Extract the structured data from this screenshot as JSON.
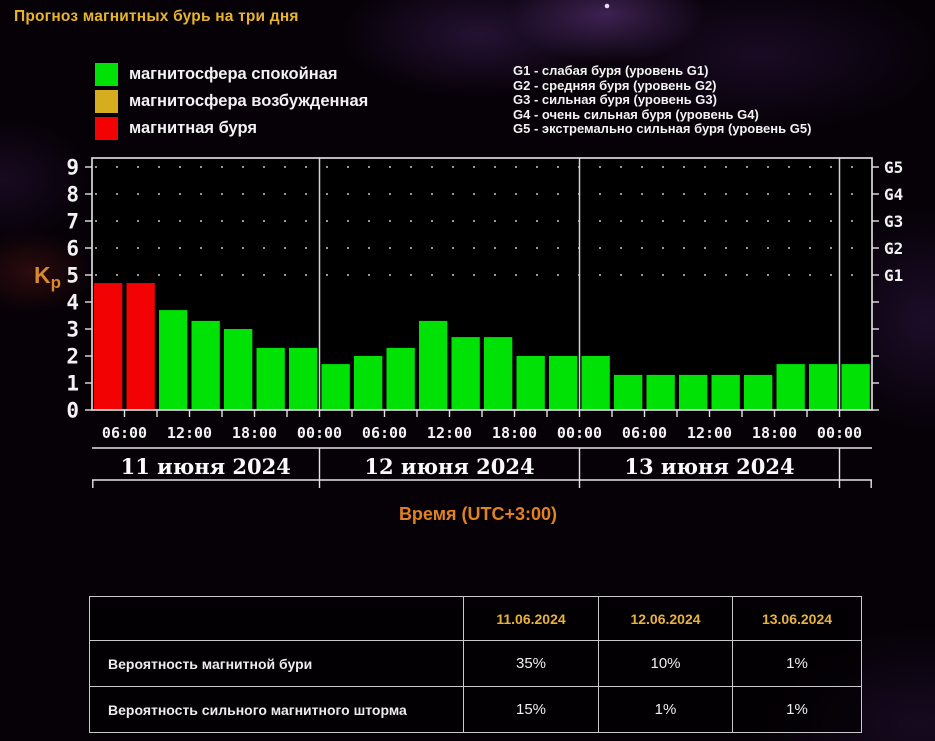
{
  "page": {
    "title": "Прогноз магнитных бурь на три дня"
  },
  "legend": {
    "items": [
      {
        "label": "магнитосфера спокойная",
        "state": "quiet",
        "color": "#00e206"
      },
      {
        "label": "магнитосфера возбужденная",
        "state": "excited",
        "color": "#d6ad1e"
      },
      {
        "label": "магнитная буря",
        "state": "storm",
        "color": "#f20202"
      }
    ]
  },
  "storm_levels": [
    "G1 - слабая буря (уровень G1)",
    "G2 - средняя буря (уровень G2)",
    "G3 - сильная буря (уровень G3)",
    "G4 - очень сильная буря (уровень G4)",
    "G5 - экстремально сильная буря (уровень G5)"
  ],
  "chart_data": {
    "type": "bar",
    "ylabel": "Kp",
    "xlabel": "Время (UTC+3:00)",
    "ylim": [
      0,
      9
    ],
    "yticks": [
      0,
      1,
      2,
      3,
      4,
      5,
      6,
      7,
      8,
      9
    ],
    "bar_duration_hours": 3,
    "start_hour": 3,
    "end_hour": 75,
    "colors": {
      "quiet": "#00e206",
      "excited": "#d6ad1e",
      "storm": "#f20202"
    },
    "grid": "dotted rows at Kp 5-9",
    "right_axis": [
      {
        "kp": 5,
        "label": "G1"
      },
      {
        "kp": 6,
        "label": "G2"
      },
      {
        "kp": 7,
        "label": "G3"
      },
      {
        "kp": 8,
        "label": "G4"
      },
      {
        "kp": 9,
        "label": "G5"
      }
    ],
    "days": [
      {
        "label": "11 июня 2024",
        "start_hour": 3,
        "end_hour": 24
      },
      {
        "label": "12 июня 2024",
        "start_hour": 24,
        "end_hour": 48
      },
      {
        "label": "13 июня 2024",
        "start_hour": 48,
        "end_hour": 72
      }
    ],
    "time_ticks": [
      {
        "hour": 6,
        "label": "06:00"
      },
      {
        "hour": 12,
        "label": "12:00"
      },
      {
        "hour": 18,
        "label": "18:00"
      },
      {
        "hour": 24,
        "label": "00:00"
      },
      {
        "hour": 30,
        "label": "06:00"
      },
      {
        "hour": 36,
        "label": "12:00"
      },
      {
        "hour": 42,
        "label": "18:00"
      },
      {
        "hour": 48,
        "label": "00:00"
      },
      {
        "hour": 54,
        "label": "06:00"
      },
      {
        "hour": 60,
        "label": "12:00"
      },
      {
        "hour": 66,
        "label": "18:00"
      },
      {
        "hour": 72,
        "label": "00:00"
      }
    ],
    "bars": [
      {
        "kp": 4.7,
        "state": "storm"
      },
      {
        "kp": 4.7,
        "state": "storm"
      },
      {
        "kp": 3.7,
        "state": "quiet"
      },
      {
        "kp": 3.3,
        "state": "quiet"
      },
      {
        "kp": 3.0,
        "state": "quiet"
      },
      {
        "kp": 2.3,
        "state": "quiet"
      },
      {
        "kp": 2.3,
        "state": "quiet"
      },
      {
        "kp": 1.7,
        "state": "quiet"
      },
      {
        "kp": 2.0,
        "state": "quiet"
      },
      {
        "kp": 2.3,
        "state": "quiet"
      },
      {
        "kp": 3.3,
        "state": "quiet"
      },
      {
        "kp": 2.7,
        "state": "quiet"
      },
      {
        "kp": 2.7,
        "state": "quiet"
      },
      {
        "kp": 2.0,
        "state": "quiet"
      },
      {
        "kp": 2.0,
        "state": "quiet"
      },
      {
        "kp": 2.0,
        "state": "quiet"
      },
      {
        "kp": 1.3,
        "state": "quiet"
      },
      {
        "kp": 1.3,
        "state": "quiet"
      },
      {
        "kp": 1.3,
        "state": "quiet"
      },
      {
        "kp": 1.3,
        "state": "quiet"
      },
      {
        "kp": 1.3,
        "state": "quiet"
      },
      {
        "kp": 1.7,
        "state": "quiet"
      },
      {
        "kp": 1.7,
        "state": "quiet"
      },
      {
        "kp": 1.7,
        "state": "quiet"
      }
    ]
  },
  "table": {
    "header": [
      "",
      "11.06.2024",
      "12.06.2024",
      "13.06.2024"
    ],
    "rows": [
      {
        "label": "Вероятность магнитной бури",
        "values": [
          "35%",
          "10%",
          "1%"
        ]
      },
      {
        "label": "Вероятность сильного магнитного шторма",
        "values": [
          "15%",
          "1%",
          "1%"
        ]
      }
    ]
  },
  "theme": {
    "accent_gold": "#e7b42f",
    "accent_orange": "#e0821f",
    "text": "#f2f2f2"
  }
}
